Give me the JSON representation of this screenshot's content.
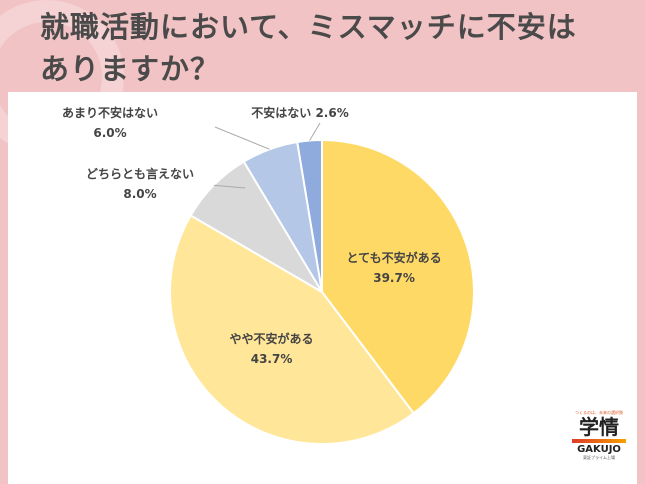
{
  "header": {
    "title_line1": "就職活動において、ミスマッチに不安は",
    "title_line2": "ありますか？"
  },
  "chart_data": {
    "type": "pie",
    "start": "top",
    "direction": "clockwise",
    "slices": [
      {
        "label": "とても不安がある",
        "value": 39.7,
        "display": "39.7%",
        "color": "#ffd966"
      },
      {
        "label": "やや不安がある",
        "value": 43.7,
        "display": "43.7%",
        "color": "#ffe699"
      },
      {
        "label": "どちらとも言えない",
        "value": 8.0,
        "display": "8.0%",
        "color": "#d9d9d9"
      },
      {
        "label": "あまり不安はない",
        "value": 6.0,
        "display": "6.0%",
        "color": "#b4c7e7"
      },
      {
        "label": "不安はない",
        "value": 2.6,
        "display": "2.6%",
        "color": "#8faadc"
      }
    ]
  },
  "logo": {
    "tagline": "つくるのは、未来の選択肢",
    "name": "学情",
    "name_en": "GAKUJO",
    "sub": "東証プライム上場"
  }
}
